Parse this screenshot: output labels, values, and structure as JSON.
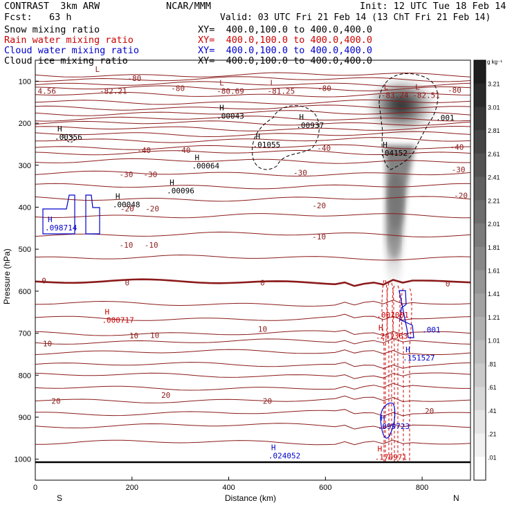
{
  "header": {
    "title_left": "CONTRAST  3km ARW",
    "center": "NCAR/MMM",
    "init": "Init: 12 UTC Tue 18 Feb 14",
    "fcst": "Fcst:   63 h",
    "valid": "Valid: 03 UTC Fri 21 Feb 14 (13 ChT Fri 21 Feb 14)"
  },
  "colors": {
    "snow": "#000000",
    "rain": "#cc0000",
    "cloud_water": "#0000cc",
    "cloud_ice": "#000000",
    "temperature": "#8b1a1a"
  },
  "chart_data": {
    "type": "cross-section",
    "xlabel": "Distance (km)",
    "ylabel": "Pressure (hPa)",
    "xlim": [
      0,
      900
    ],
    "ylim": [
      1050,
      50
    ],
    "x_ticks": [
      "0",
      "200",
      "400",
      "600",
      "800"
    ],
    "y_ticks": [
      "100",
      "200",
      "300",
      "400",
      "500",
      "600",
      "700",
      "800",
      "900",
      "1000"
    ],
    "x_end_labels": {
      "left": "S",
      "right": "N"
    },
    "legend": [
      {
        "name": "Snow mixing ratio",
        "xy": "XY=  400.0,100.0 to 400.0,400.0",
        "color": "#000000"
      },
      {
        "name": "Rain water mixing ratio",
        "xy": "XY=  400.0,100.0 to 400.0,400.0",
        "color": "#cc0000"
      },
      {
        "name": "Cloud water mixing ratio",
        "xy": "XY=  400.0,100.0 to 400.0,400.0",
        "color": "#0000cc"
      },
      {
        "name": "Cloud ice mixing ratio",
        "xy": "XY=  400.0,100.0 to 400.0,400.0",
        "color": "#000000"
      }
    ],
    "colorbar": {
      "unit": "g kg⁻¹",
      "levels": [
        "3.21",
        "3.01",
        "2.81",
        "2.61",
        "2.41",
        "2.21",
        "2.01",
        "1.81",
        "1.61",
        "1.41",
        "1.21",
        "1.01",
        ".81",
        ".61",
        ".41",
        ".21",
        ".01"
      ]
    },
    "isotherm_labels": [
      {
        "text": "-80",
        "x": 205,
        "p": 93
      },
      {
        "text": "-80",
        "x": 295,
        "p": 117
      },
      {
        "text": "-80",
        "x": 598,
        "p": 117
      },
      {
        "text": "-80",
        "x": 867,
        "p": 121
      },
      {
        "text": "-40",
        "x": 225,
        "p": 264
      },
      {
        "text": "-40",
        "x": 307,
        "p": 264
      },
      {
        "text": "-40",
        "x": 597,
        "p": 259
      },
      {
        "text": "-40",
        "x": 872,
        "p": 257
      },
      {
        "text": "-30",
        "x": 188,
        "p": 322
      },
      {
        "text": "-30",
        "x": 238,
        "p": 322
      },
      {
        "text": "-30",
        "x": 548,
        "p": 318
      },
      {
        "text": "-30",
        "x": 875,
        "p": 310
      },
      {
        "text": "-20",
        "x": 190,
        "p": 403
      },
      {
        "text": "-20",
        "x": 242,
        "p": 403
      },
      {
        "text": "-20",
        "x": 587,
        "p": 396
      },
      {
        "text": "-20",
        "x": 880,
        "p": 372
      },
      {
        "text": "-10",
        "x": 188,
        "p": 490
      },
      {
        "text": "-10",
        "x": 240,
        "p": 490
      },
      {
        "text": "-10",
        "x": 587,
        "p": 470
      },
      {
        "text": "0",
        "x": 18,
        "p": 575
      },
      {
        "text": "0",
        "x": 190,
        "p": 580
      },
      {
        "text": "0",
        "x": 470,
        "p": 580
      },
      {
        "text": "0",
        "x": 853,
        "p": 582
      },
      {
        "text": "10",
        "x": 25,
        "p": 725
      },
      {
        "text": "10",
        "x": 204,
        "p": 706
      },
      {
        "text": "10",
        "x": 247,
        "p": 705
      },
      {
        "text": "10",
        "x": 470,
        "p": 690
      },
      {
        "text": "20",
        "x": 43,
        "p": 861
      },
      {
        "text": "20",
        "x": 270,
        "p": 847
      },
      {
        "text": "20",
        "x": 480,
        "p": 861
      },
      {
        "text": "20",
        "x": 815,
        "p": 885
      }
    ],
    "extrema": [
      {
        "mark": "L",
        "value": "",
        "x": 118,
        "p": 85,
        "color": "#8b1a1a"
      },
      {
        "mark": "",
        "value": "4.56",
        "x": 5,
        "p": 117,
        "color": "#8b1a1a"
      },
      {
        "mark": "",
        "value": "-82.21",
        "x": 133,
        "p": 117,
        "color": "#8b1a1a"
      },
      {
        "mark": "L",
        "value": "-80.69",
        "x": 375,
        "p": 117,
        "color": "#8b1a1a"
      },
      {
        "mark": "L",
        "value": "-81.25",
        "x": 480,
        "p": 117,
        "color": "#8b1a1a"
      },
      {
        "mark": "L",
        "value": "-83.24",
        "x": 715,
        "p": 127,
        "color": "#8b1a1a"
      },
      {
        "mark": "L",
        "value": "-82.51",
        "x": 780,
        "p": 127,
        "color": "#8b1a1a"
      },
      {
        "mark": "H",
        "value": ".00043",
        "x": 375,
        "p": 176,
        "color": "#000000"
      },
      {
        "mark": "H",
        "value": ".00937",
        "x": 540,
        "p": 198,
        "color": "#000000"
      },
      {
        "mark": "H",
        "value": ".00356",
        "x": 40,
        "p": 226,
        "color": "#000000"
      },
      {
        "mark": "H",
        "value": ".01055",
        "x": 450,
        "p": 244,
        "color": "#000000"
      },
      {
        "mark": ".001",
        "value": "",
        "x": 823,
        "p": 200,
        "color": "#000000"
      },
      {
        "mark": "H",
        "value": ".04152",
        "x": 713,
        "p": 264,
        "color": "#000000"
      },
      {
        "mark": "H",
        "value": ".00064",
        "x": 324,
        "p": 295,
        "color": "#000000"
      },
      {
        "mark": "H",
        "value": ".00096",
        "x": 272,
        "p": 354,
        "color": "#000000"
      },
      {
        "mark": "H",
        "value": ".00048",
        "x": 160,
        "p": 387,
        "color": "#000000"
      },
      {
        "mark": "H",
        "value": ".098714",
        "x": 20,
        "p": 442,
        "color": "#0000cc"
      },
      {
        "mark": "H",
        "value": ".000717",
        "x": 138,
        "p": 662,
        "color": "#cc0000"
      },
      {
        "mark": "",
        "value": ".001001",
        "x": 706,
        "p": 650,
        "color": "#cc0000"
      },
      {
        "mark": "H",
        "value": ".241363",
        "x": 704,
        "p": 700,
        "color": "#cc0000"
      },
      {
        "mark": "",
        "value": ".001",
        "x": 800,
        "p": 685,
        "color": "#0000cc"
      },
      {
        "mark": "H",
        "value": ".151527",
        "x": 760,
        "p": 752,
        "color": "#0000cc"
      },
      {
        "mark": "H",
        "value": ".099723",
        "x": 708,
        "p": 915,
        "color": "#0000cc"
      },
      {
        "mark": "H",
        "value": ".024052",
        "x": 482,
        "p": 985,
        "color": "#0000cc"
      },
      {
        "mark": "H",
        "value": ".170971",
        "x": 702,
        "p": 988,
        "color": "#cc0000"
      }
    ]
  }
}
